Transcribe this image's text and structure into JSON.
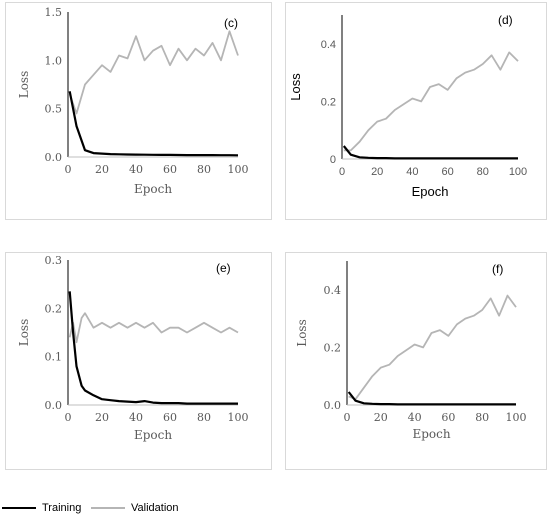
{
  "legend": {
    "training_label": "Training",
    "validation_label": "Validation",
    "training_color": "#000000",
    "validation_color": "#b5b5b5"
  },
  "chart_data": [
    {
      "type": "line",
      "panel_label": "(c)",
      "xlabel": "Epoch",
      "ylabel": "Loss",
      "xlim": [
        0,
        100
      ],
      "ylim": [
        0,
        1.5
      ],
      "xticks": [
        "0",
        "20",
        "40",
        "60",
        "80",
        "100"
      ],
      "yticks": [
        "0.0",
        "0.5",
        "1.0",
        "1.5"
      ],
      "x": [
        1,
        5,
        10,
        15,
        20,
        25,
        30,
        35,
        40,
        45,
        50,
        55,
        60,
        65,
        70,
        75,
        80,
        85,
        90,
        95,
        100
      ],
      "series": [
        {
          "name": "Training",
          "values": [
            0.68,
            0.32,
            0.07,
            0.04,
            0.035,
            0.03,
            0.028,
            0.026,
            0.025,
            0.024,
            0.023,
            0.022,
            0.022,
            0.021,
            0.02,
            0.02,
            0.02,
            0.02,
            0.019,
            0.019,
            0.018
          ]
        },
        {
          "name": "Validation",
          "values": [
            0.65,
            0.45,
            0.75,
            0.85,
            0.95,
            0.88,
            1.05,
            1.02,
            1.25,
            1.0,
            1.1,
            1.15,
            0.95,
            1.12,
            1.0,
            1.12,
            1.05,
            1.18,
            1.0,
            1.3,
            1.05
          ]
        }
      ]
    },
    {
      "type": "line",
      "panel_label": "(d)",
      "xlabel": "Epoch",
      "ylabel": "Loss",
      "xlim": [
        0,
        100
      ],
      "ylim": [
        0,
        0.5
      ],
      "xticks": [
        "0",
        "20",
        "40",
        "60",
        "80",
        "100"
      ],
      "yticks": [
        "0",
        "0.2",
        "0.4"
      ],
      "x": [
        1,
        5,
        10,
        15,
        20,
        25,
        30,
        35,
        40,
        45,
        50,
        55,
        60,
        65,
        70,
        75,
        80,
        85,
        90,
        95,
        100
      ],
      "series": [
        {
          "name": "Training",
          "values": [
            0.045,
            0.015,
            0.006,
            0.004,
            0.003,
            0.003,
            0.002,
            0.002,
            0.002,
            0.002,
            0.002,
            0.002,
            0.002,
            0.002,
            0.002,
            0.002,
            0.002,
            0.002,
            0.002,
            0.002,
            0.002
          ]
        },
        {
          "name": "Validation",
          "values": [
            0.03,
            0.03,
            0.06,
            0.1,
            0.13,
            0.14,
            0.17,
            0.19,
            0.21,
            0.2,
            0.25,
            0.26,
            0.24,
            0.28,
            0.3,
            0.31,
            0.33,
            0.36,
            0.31,
            0.37,
            0.34
          ]
        }
      ]
    },
    {
      "type": "line",
      "panel_label": "(e)",
      "xlabel": "Epoch",
      "ylabel": "Loss",
      "xlim": [
        0,
        100
      ],
      "ylim": [
        0,
        0.3
      ],
      "xticks": [
        "0",
        "20",
        "40",
        "60",
        "80",
        "100"
      ],
      "yticks": [
        "0.0",
        "0.1",
        "0.2",
        "0.3"
      ],
      "x": [
        1,
        3,
        5,
        8,
        10,
        15,
        20,
        25,
        30,
        35,
        40,
        45,
        50,
        55,
        60,
        65,
        70,
        75,
        80,
        85,
        90,
        95,
        100
      ],
      "series": [
        {
          "name": "Training",
          "values": [
            0.235,
            0.15,
            0.08,
            0.04,
            0.03,
            0.02,
            0.012,
            0.01,
            0.008,
            0.007,
            0.006,
            0.008,
            0.005,
            0.004,
            0.004,
            0.004,
            0.003,
            0.003,
            0.003,
            0.003,
            0.003,
            0.003,
            0.003
          ]
        },
        {
          "name": "Validation",
          "values": [
            0.14,
            0.17,
            0.13,
            0.18,
            0.19,
            0.16,
            0.17,
            0.16,
            0.17,
            0.16,
            0.17,
            0.16,
            0.17,
            0.15,
            0.16,
            0.16,
            0.15,
            0.16,
            0.17,
            0.16,
            0.15,
            0.16,
            0.15
          ]
        }
      ]
    },
    {
      "type": "line",
      "panel_label": "(f)",
      "xlabel": "Epoch",
      "ylabel": "Loss",
      "xlim": [
        0,
        100
      ],
      "ylim": [
        0,
        0.5
      ],
      "xticks": [
        "0",
        "20",
        "40",
        "60",
        "80",
        "100"
      ],
      "yticks": [
        "0.0",
        "0.2",
        "0.4"
      ],
      "x": [
        1,
        5,
        10,
        15,
        20,
        25,
        30,
        35,
        40,
        45,
        50,
        55,
        60,
        65,
        70,
        75,
        80,
        85,
        90,
        95,
        100
      ],
      "series": [
        {
          "name": "Training",
          "values": [
            0.045,
            0.015,
            0.006,
            0.004,
            0.003,
            0.003,
            0.002,
            0.002,
            0.002,
            0.002,
            0.002,
            0.002,
            0.002,
            0.002,
            0.002,
            0.002,
            0.002,
            0.002,
            0.002,
            0.002,
            0.002
          ]
        },
        {
          "name": "Validation",
          "values": [
            0.03,
            0.02,
            0.06,
            0.1,
            0.13,
            0.14,
            0.17,
            0.19,
            0.21,
            0.2,
            0.25,
            0.26,
            0.24,
            0.28,
            0.3,
            0.31,
            0.33,
            0.37,
            0.31,
            0.38,
            0.34
          ]
        }
      ]
    }
  ]
}
